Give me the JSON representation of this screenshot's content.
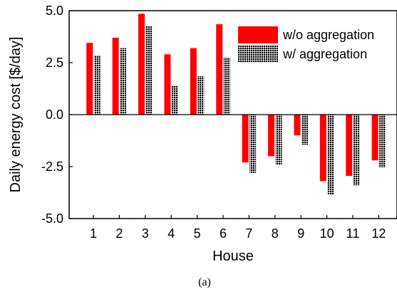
{
  "colors": {
    "without": "#ff0000",
    "with_fill": "#000000",
    "with_grid": "#ffffff",
    "axis": "#000000",
    "zero_line": "#000000"
  },
  "caption": "(a)",
  "chart_data": {
    "type": "bar",
    "title": "",
    "xlabel": "House",
    "ylabel": "Daily energy cost [$/day]",
    "categories": [
      "1",
      "2",
      "3",
      "4",
      "5",
      "6",
      "7",
      "8",
      "9",
      "10",
      "11",
      "12"
    ],
    "ylim": [
      -5.0,
      5.0
    ],
    "yticks": [
      -5.0,
      -2.5,
      0.0,
      2.5,
      5.0
    ],
    "ytick_labels": [
      "-5.0",
      "-2.5",
      "0.0",
      "2.5",
      "5.0"
    ],
    "grid": false,
    "legend_position": "top-right",
    "series": [
      {
        "name": "w/o aggregation",
        "pattern": "solid",
        "values": [
          3.45,
          3.7,
          4.85,
          2.9,
          3.2,
          4.35,
          -2.3,
          -2.0,
          -1.0,
          -3.2,
          -2.95,
          -2.2
        ]
      },
      {
        "name": "w/ aggregation",
        "pattern": "grid",
        "values": [
          2.85,
          3.2,
          4.25,
          1.4,
          1.85,
          2.75,
          -2.8,
          -2.4,
          -1.45,
          -3.85,
          -3.4,
          -2.55
        ]
      }
    ]
  }
}
